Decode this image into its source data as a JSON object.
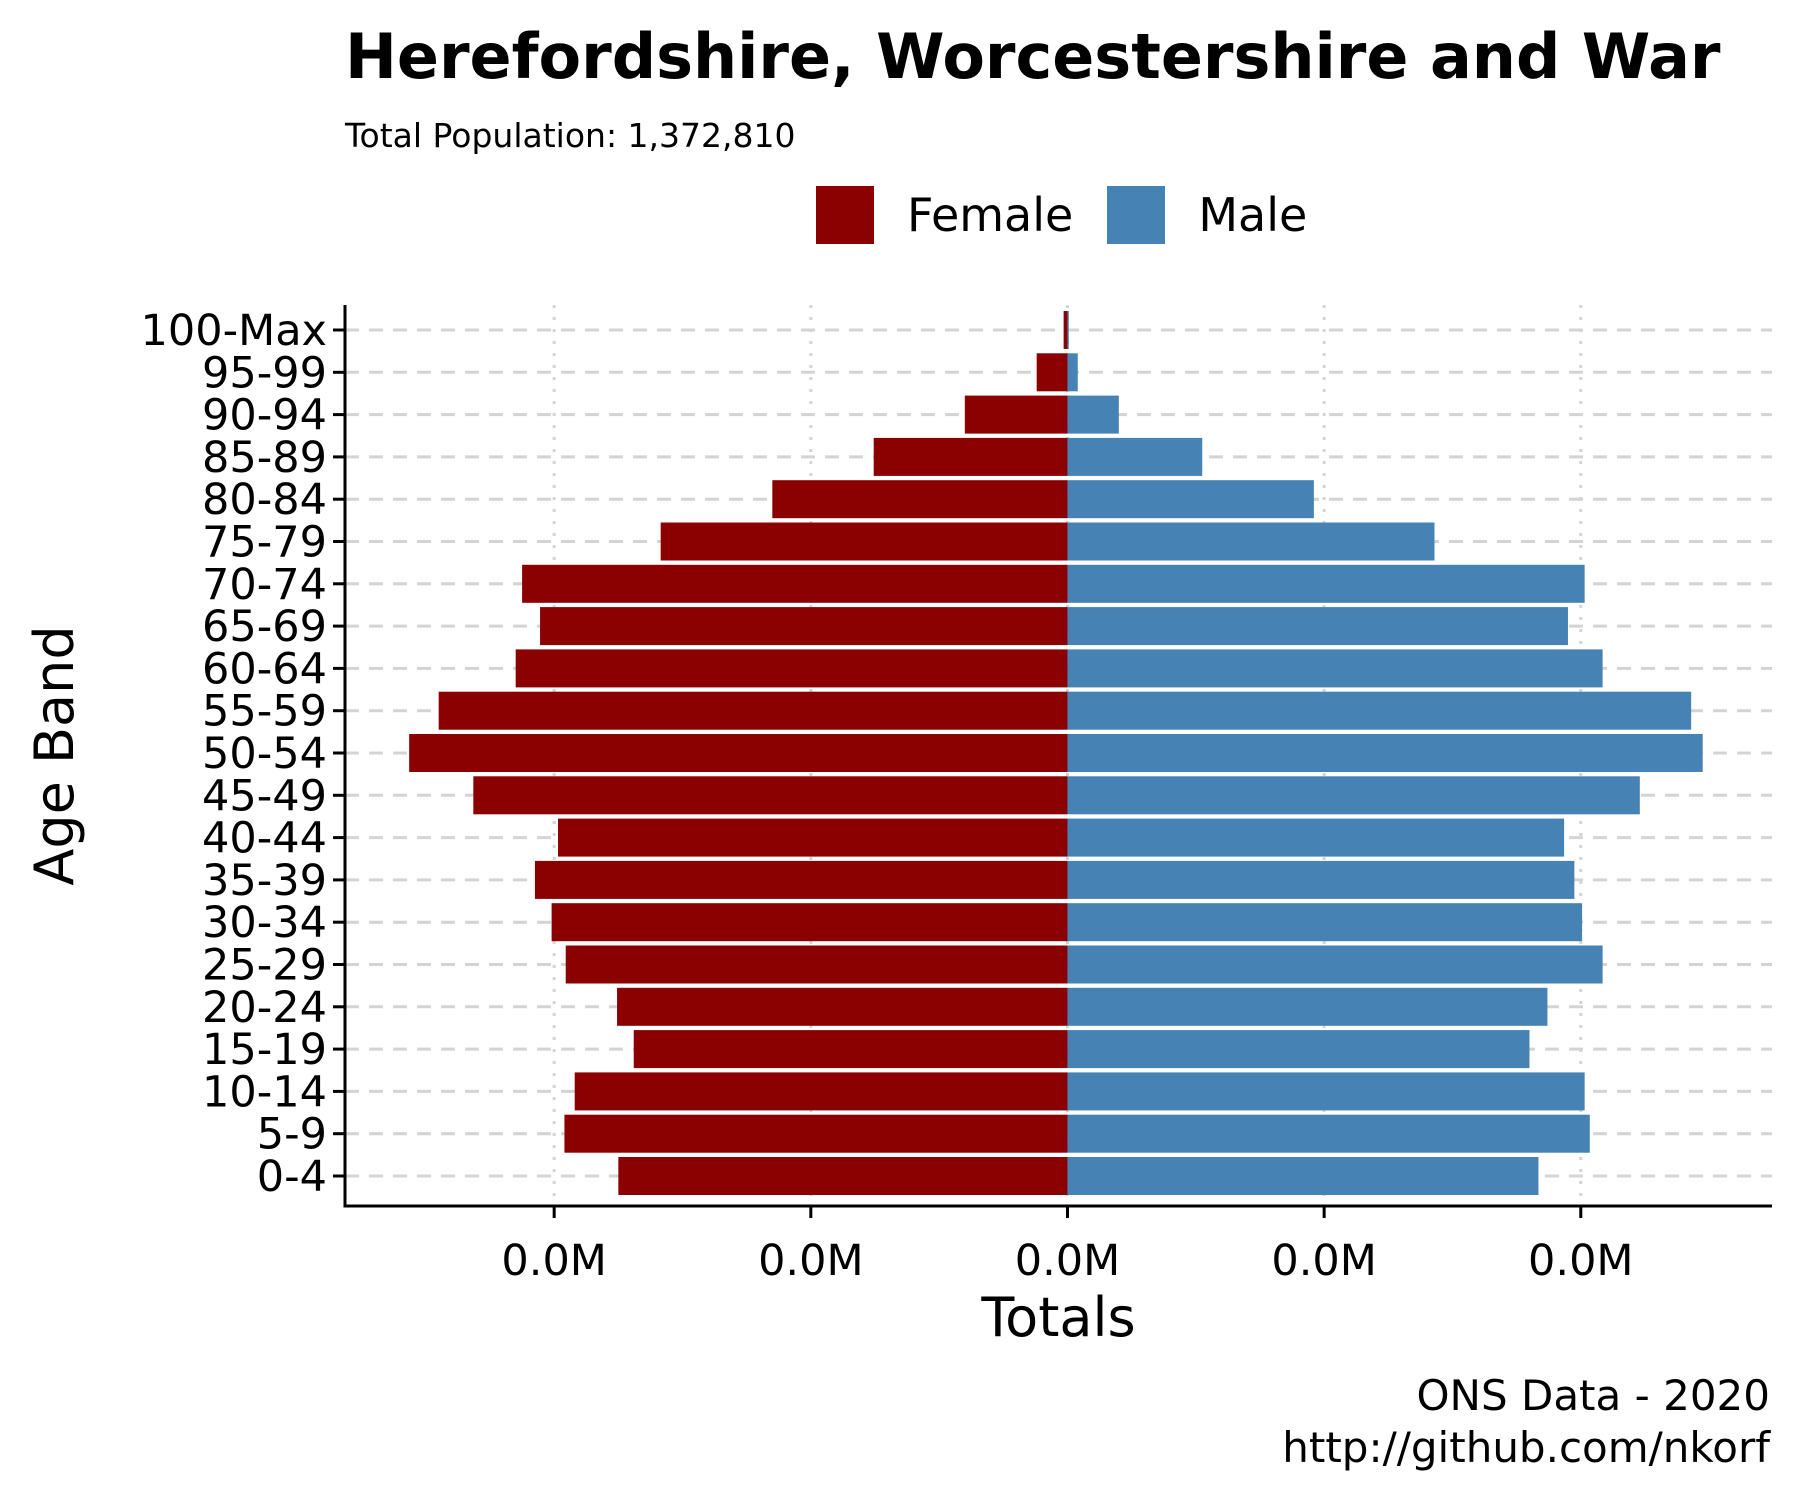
{
  "chart_data": {
    "type": "bar",
    "orientation": "horizontal",
    "title": "Herefordshire, Worcestershire and War",
    "subtitle": "Total Population:  1,372,810",
    "xlabel": "Totals",
    "ylabel": "Age Band",
    "x_tick_labels": [
      "0.0M",
      "0.0M",
      "0.0M",
      "0.0M",
      "0.0M"
    ],
    "x_ticks": [
      -40000,
      -20000,
      0,
      20000,
      40000
    ],
    "xlim": [
      -56300,
      54900
    ],
    "categories": [
      "100-Max",
      "95-99",
      "90-94",
      "85-89",
      "80-84",
      "75-79",
      "70-74",
      "65-69",
      "60-64",
      "55-59",
      "50-54",
      "45-49",
      "40-44",
      "35-39",
      "30-34",
      "25-29",
      "20-24",
      "15-19",
      "10-14",
      "5-9",
      "0-4"
    ],
    "series": [
      {
        "name": "Female",
        "color": "#8b0000",
        "values": [
          -300,
          -2400,
          -8000,
          -15100,
          -23000,
          -31700,
          -42500,
          -41100,
          -43000,
          -49000,
          -51300,
          -46300,
          -39700,
          -41500,
          -40200,
          -39100,
          -35100,
          -33800,
          -38400,
          -39200,
          -35000
        ]
      },
      {
        "name": "Male",
        "color": "#4682b4",
        "values": [
          100,
          800,
          4000,
          10500,
          19200,
          28600,
          40300,
          39000,
          41700,
          48600,
          49500,
          44600,
          38700,
          39500,
          40100,
          41700,
          37400,
          36000,
          40300,
          40700,
          36700
        ]
      }
    ],
    "grid": {
      "major_x": "dotted",
      "major_y": "dashed"
    },
    "legend_position": "top"
  },
  "caption": {
    "line1": "ONS Data - 2020",
    "line2": "http://github.com/nkorf"
  }
}
